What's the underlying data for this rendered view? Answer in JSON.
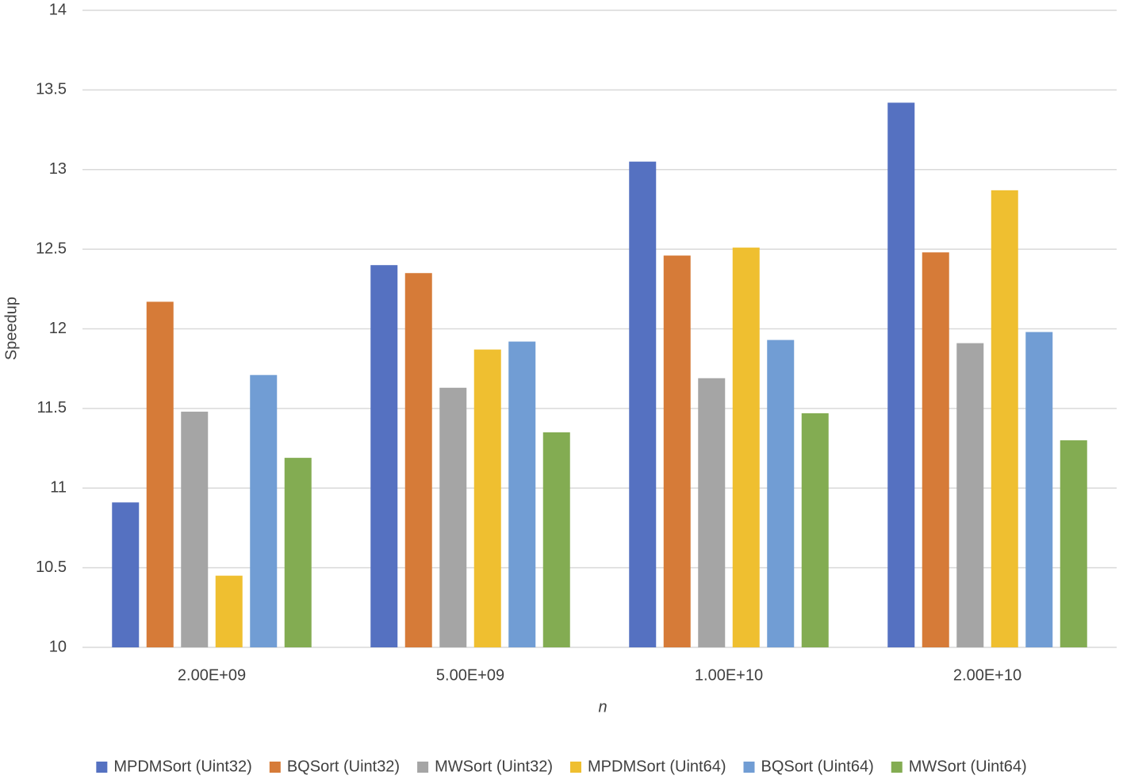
{
  "chart_data": {
    "type": "bar",
    "x_label": "n",
    "y_label": "Speedup",
    "categories": [
      "2.00E+09",
      "5.00E+09",
      "1.00E+10",
      "2.00E+10"
    ],
    "series": [
      {
        "name": "MPDMSort (Uint32)",
        "color": "#5571c1",
        "values": [
          10.91,
          12.4,
          13.05,
          13.42
        ]
      },
      {
        "name": "BQSort (Uint32)",
        "color": "#d67b38",
        "values": [
          12.17,
          12.35,
          12.46,
          12.48
        ]
      },
      {
        "name": "MWSort (Uint32)",
        "color": "#a5a5a5",
        "values": [
          11.48,
          11.63,
          11.69,
          11.91
        ]
      },
      {
        "name": "MPDMSort (Uint64)",
        "color": "#efbf30",
        "values": [
          10.45,
          11.87,
          12.51,
          12.87
        ]
      },
      {
        "name": "BQSort (Uint64)",
        "color": "#719dd4",
        "values": [
          11.71,
          11.92,
          11.93,
          11.98
        ]
      },
      {
        "name": "MWSort (Uint64)",
        "color": "#83ac52",
        "values": [
          11.19,
          11.35,
          11.47,
          11.3
        ]
      }
    ],
    "ylim": [
      10,
      14
    ],
    "yticks": [
      10,
      10.5,
      11,
      11.5,
      12,
      12.5,
      13,
      13.5,
      14
    ],
    "grid": true,
    "legend": "bottom"
  }
}
